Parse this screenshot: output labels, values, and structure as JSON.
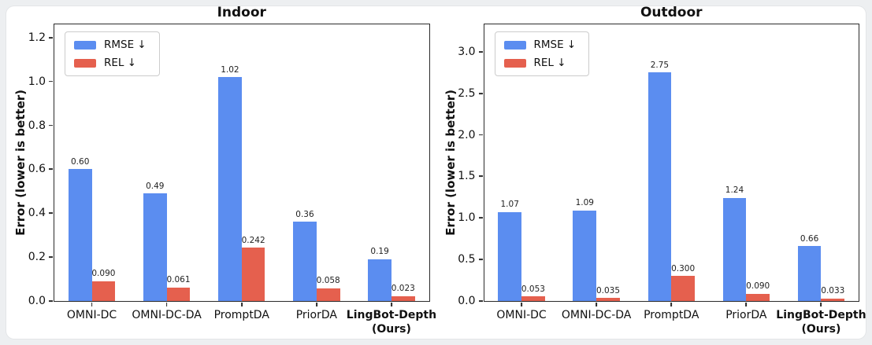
{
  "figure": {
    "background_color": "#edeff1",
    "card_color": "#ffffff",
    "axis_color": "#2b2b2b",
    "text_color": "#111111"
  },
  "chart_data": [
    {
      "type": "bar",
      "title": "Indoor",
      "ylabel": "Error (lower is better)",
      "categories": [
        "OMNI-DC",
        "OMNI-DC-DA",
        "PromptDA",
        "PriorDA",
        "LingBot-Depth\n(Ours)"
      ],
      "series": [
        {
          "name": "RMSE ↓",
          "color": "#5b8df0",
          "values": [
            0.6,
            0.49,
            1.02,
            0.36,
            0.19
          ],
          "value_labels": [
            "0.60",
            "0.49",
            "1.02",
            "0.36",
            "0.19"
          ]
        },
        {
          "name": "REL ↓",
          "color": "#e5604e",
          "values": [
            0.09,
            0.061,
            0.242,
            0.058,
            0.023
          ],
          "value_labels": [
            "0.090",
            "0.061",
            "0.242",
            "0.058",
            "0.023"
          ]
        }
      ],
      "yticks": [
        0.0,
        0.2,
        0.4,
        0.6,
        0.8,
        1.0,
        1.2
      ],
      "ytick_labels": [
        "0.0",
        "0.2",
        "0.4",
        "0.6",
        "0.8",
        "1.0",
        "1.2"
      ],
      "ylim": [
        0,
        1.26
      ],
      "grid": false,
      "legend_position": "upper left",
      "bold_last_category": true
    },
    {
      "type": "bar",
      "title": "Outdoor",
      "ylabel": "Error (lower is better)",
      "categories": [
        "OMNI-DC",
        "OMNI-DC-DA",
        "PromptDA",
        "PriorDA",
        "LingBot-Depth\n(Ours)"
      ],
      "series": [
        {
          "name": "RMSE ↓",
          "color": "#5b8df0",
          "values": [
            1.07,
            1.09,
            2.75,
            1.24,
            0.66
          ],
          "value_labels": [
            "1.07",
            "1.09",
            "2.75",
            "1.24",
            "0.66"
          ]
        },
        {
          "name": "REL ↓",
          "color": "#e5604e",
          "values": [
            0.053,
            0.035,
            0.3,
            0.09,
            0.033
          ],
          "value_labels": [
            "0.053",
            "0.035",
            "0.300",
            "0.090",
            "0.033"
          ]
        }
      ],
      "yticks": [
        0.0,
        0.5,
        1.0,
        1.5,
        2.0,
        2.5,
        3.0
      ],
      "ytick_labels": [
        "0.0",
        "0.5",
        "1.0",
        "1.5",
        "2.0",
        "2.5",
        "3.0"
      ],
      "ylim": [
        0,
        3.33
      ],
      "grid": false,
      "legend_position": "upper left",
      "bold_last_category": true
    }
  ]
}
